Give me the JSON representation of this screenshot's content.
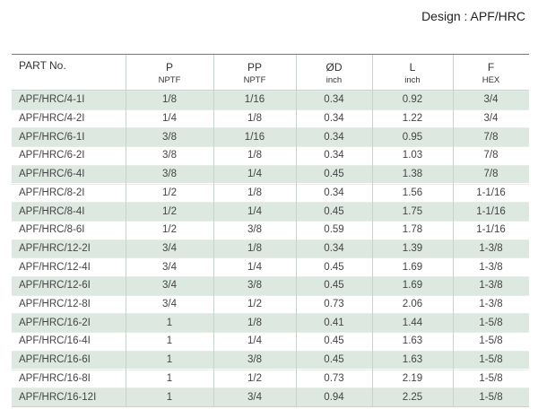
{
  "header": {
    "title": "Design : APF/HRC"
  },
  "table": {
    "columns": [
      {
        "name": "PART No."
      },
      {
        "name": "P",
        "unit": "NPTF"
      },
      {
        "name": "PP",
        "unit": "NPTF"
      },
      {
        "name": "ØD",
        "unit": "inch"
      },
      {
        "name": "L",
        "unit": "inch"
      },
      {
        "name": "F",
        "unit": "HEX"
      }
    ],
    "rows": [
      [
        "APF/HRC/4-1I",
        "1/8",
        "1/16",
        "0.34",
        "0.92",
        "3/4"
      ],
      [
        "APF/HRC/4-2I",
        "1/4",
        "1/8",
        "0.34",
        "1.22",
        "3/4"
      ],
      [
        "APF/HRC/6-1I",
        "3/8",
        "1/16",
        "0.34",
        "0.95",
        "7/8"
      ],
      [
        "APF/HRC/6-2I",
        "3/8",
        "1/8",
        "0.34",
        "1.03",
        "7/8"
      ],
      [
        "APF/HRC/6-4I",
        "3/8",
        "1/4",
        "0.45",
        "1.38",
        "7/8"
      ],
      [
        "APF/HRC/8-2I",
        "1/2",
        "1/8",
        "0.34",
        "1.56",
        "1-1/16"
      ],
      [
        "APF/HRC/8-4I",
        "1/2",
        "1/4",
        "0.45",
        "1.75",
        "1-1/16"
      ],
      [
        "APF/HRC/8-6I",
        "1/2",
        "3/8",
        "0.59",
        "1.78",
        "1-1/16"
      ],
      [
        "APF/HRC/12-2I",
        "3/4",
        "1/8",
        "0.34",
        "1.39",
        "1-3/8"
      ],
      [
        "APF/HRC/12-4I",
        "3/4",
        "1/4",
        "0.45",
        "1.69",
        "1-3/8"
      ],
      [
        "APF/HRC/12-6I",
        "3/4",
        "3/8",
        "0.45",
        "1.69",
        "1-3/8"
      ],
      [
        "APF/HRC/12-8I",
        "3/4",
        "1/2",
        "0.73",
        "2.06",
        "1-3/8"
      ],
      [
        "APF/HRC/16-2I",
        "1",
        "1/8",
        "0.41",
        "1.44",
        "1-5/8"
      ],
      [
        "APF/HRC/16-4I",
        "1",
        "1/4",
        "0.45",
        "1.63",
        "1-5/8"
      ],
      [
        "APF/HRC/16-6I",
        "1",
        "3/8",
        "0.45",
        "1.63",
        "1-5/8"
      ],
      [
        "APF/HRC/16-8I",
        "1",
        "1/2",
        "0.73",
        "2.19",
        "1-5/8"
      ],
      [
        "APF/HRC/16-12I",
        "1",
        "3/4",
        "0.94",
        "2.25",
        "1-5/8"
      ]
    ]
  }
}
